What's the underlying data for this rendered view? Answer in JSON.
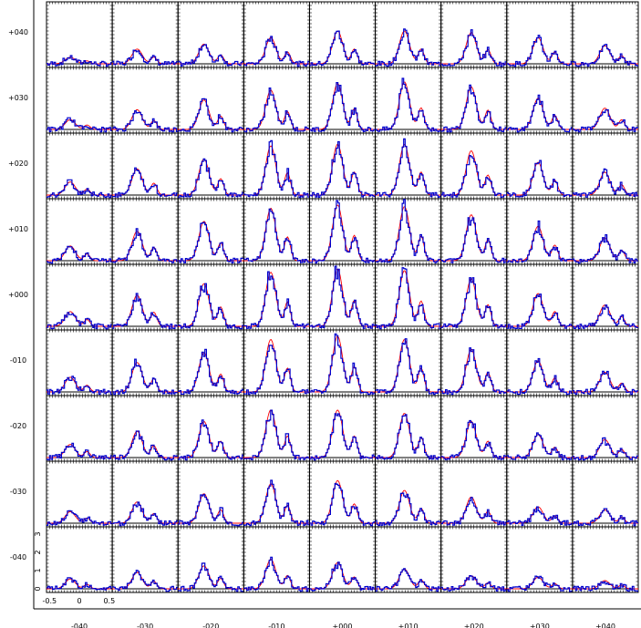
{
  "chart_data": {
    "type": "line",
    "title": "",
    "xlabel": "",
    "ylabel": "",
    "grid_columns": [
      "-040",
      "-030",
      "-020",
      "-010",
      "+000",
      "+010",
      "+020",
      "+030",
      "+040"
    ],
    "grid_rows": [
      "+040",
      "+030",
      "+020",
      "+010",
      "+000",
      "-010",
      "-020",
      "-030",
      "-040"
    ],
    "cell_x_ticks": [
      "-0.5",
      "0",
      "0.5"
    ],
    "cell_y_ticks": [
      "0",
      "1",
      "2",
      "3"
    ],
    "cell_xlim": [
      -0.55,
      0.55
    ],
    "cell_ylim": [
      -0.2,
      3.4
    ],
    "series": [
      {
        "name": "",
        "color": "#ff0000",
        "style": "model"
      },
      {
        "name": "",
        "color": "#0000cc",
        "style": "observed"
      }
    ],
    "peak_map": {
      "note_rows_top_to_bottom": true,
      "values": [
        [
          0.4,
          0.9,
          1.2,
          1.6,
          2.0,
          2.0,
          1.9,
          1.6,
          1.1
        ],
        [
          0.6,
          1.2,
          1.8,
          2.4,
          2.8,
          2.9,
          2.6,
          1.9,
          1.3
        ],
        [
          0.8,
          1.6,
          2.2,
          3.0,
          3.1,
          3.1,
          2.7,
          2.0,
          1.4
        ],
        [
          0.9,
          1.8,
          2.4,
          3.2,
          3.4,
          3.3,
          2.8,
          2.1,
          1.4
        ],
        [
          0.9,
          1.9,
          2.6,
          3.3,
          3.5,
          3.4,
          2.9,
          2.0,
          1.3
        ],
        [
          0.9,
          1.8,
          2.4,
          3.2,
          3.4,
          3.2,
          2.6,
          1.9,
          1.2
        ],
        [
          0.8,
          1.6,
          2.2,
          2.9,
          2.9,
          2.7,
          2.2,
          1.4,
          1.1
        ],
        [
          0.7,
          1.3,
          1.8,
          2.4,
          2.6,
          2.0,
          1.6,
          1.0,
          0.8
        ],
        [
          0.6,
          1.0,
          1.4,
          1.8,
          1.6,
          1.2,
          0.8,
          0.7,
          0.5
        ]
      ]
    }
  }
}
